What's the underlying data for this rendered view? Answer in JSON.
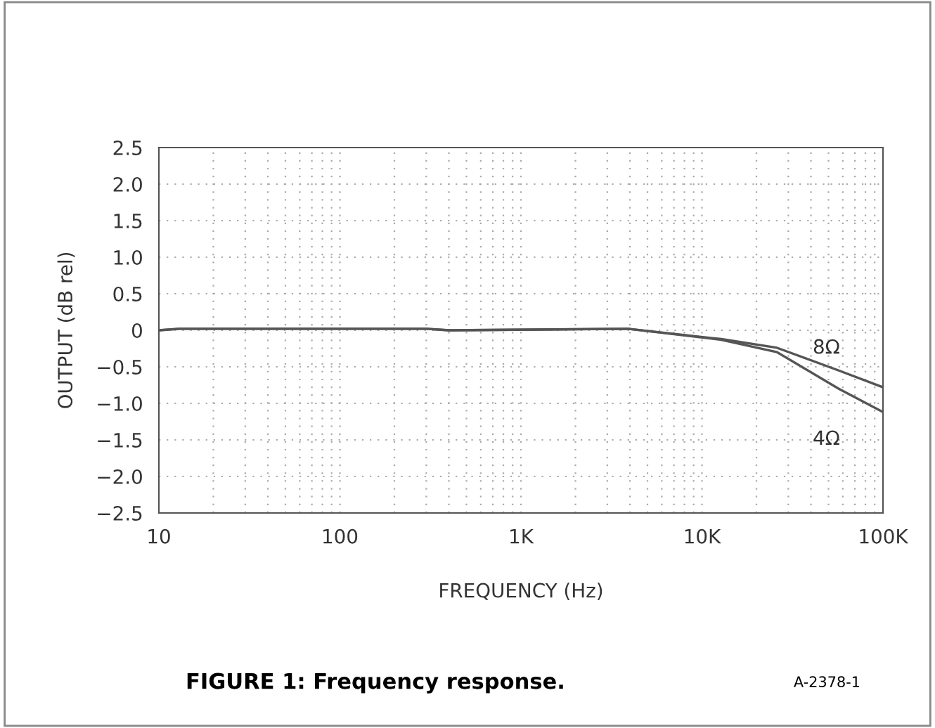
{
  "chart_data": {
    "type": "line",
    "title": "FIGURE 1: Frequency response.",
    "xlabel": "FREQUENCY (Hz)",
    "ylabel": "OUTPUT (dB rel)",
    "annotations": [
      "A-2378-1"
    ],
    "log": "x",
    "xlim": [
      10,
      100000
    ],
    "xticks": [
      10,
      100,
      {
        "value": 1000,
        "label": "1K"
      },
      {
        "value": 10000,
        "label": "10K"
      },
      {
        "value": 100000,
        "label": "100K"
      }
    ],
    "ylim": [
      -2.5,
      2.5
    ],
    "yticks": [
      {
        "value": 2.5,
        "label": "2.5"
      },
      {
        "value": 2.0,
        "label": "2.0"
      },
      {
        "value": 1.5,
        "label": "1.5"
      },
      {
        "value": 1.0,
        "label": "1.0"
      },
      {
        "value": 0.5,
        "label": "0.5"
      },
      0,
      {
        "value": -0.5,
        "label": "−0.5"
      },
      {
        "value": -1.0,
        "label": "−1.0"
      },
      {
        "value": -1.5,
        "label": "−1.5"
      },
      {
        "value": -2.0,
        "label": "−2.0"
      },
      {
        "value": -2.5,
        "label": "−2.5"
      }
    ],
    "grid": true,
    "line_style": "solid",
    "marker": "none",
    "series": [
      {
        "name": "8Ω",
        "color": "#555555",
        "x": [
          10,
          13,
          300,
          400,
          3900,
          12800,
          26000,
          57000,
          100000
        ],
        "values": [
          0,
          0.02,
          0.02,
          0,
          0.02,
          -0.12,
          -0.24,
          -0.55,
          -0.78
        ]
      },
      {
        "name": "4Ω",
        "color": "#555555",
        "x": [
          10,
          13,
          300,
          400,
          3900,
          12800,
          26000,
          57000,
          100000
        ],
        "values": [
          0,
          0.02,
          0.02,
          0,
          0.02,
          -0.13,
          -0.3,
          -0.8,
          -1.12
        ]
      }
    ]
  }
}
